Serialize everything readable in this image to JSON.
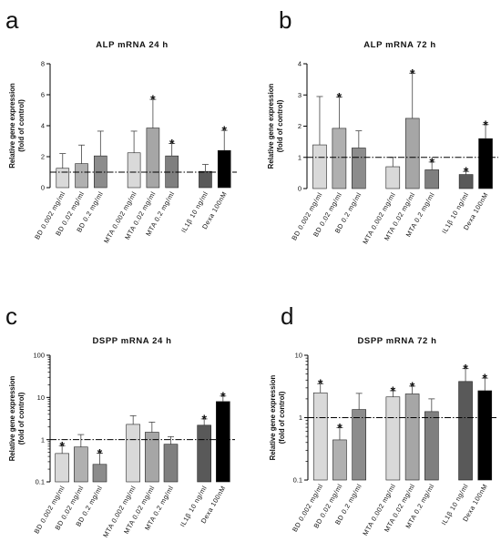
{
  "chart_data": [
    {
      "panel": "a",
      "type": "bar",
      "title": "ALP mRNA 24 h",
      "ylabel": [
        "Relative gene expression",
        "(fold of control)"
      ],
      "scale": "linear",
      "ylim": [
        0,
        8
      ],
      "yticks": [
        "0",
        "2",
        "4",
        "6",
        "8"
      ],
      "reference_line": 1,
      "categories": [
        "BD 0.002 mg/ml",
        "BD 0.02 mg/ml",
        "BD 0.2 mg/ml",
        "MTA 0.002 mg/ml",
        "MTA 0.02 mg/ml",
        "MTA 0.2 mg/ml",
        "IL1β 10 ng/ml",
        "Dexa 100nM"
      ],
      "values": [
        1.25,
        1.55,
        2.05,
        2.25,
        3.85,
        2.05,
        1.05,
        2.4
      ],
      "errors": [
        0.95,
        1.2,
        1.6,
        1.4,
        1.85,
        0.8,
        0.45,
        1.3
      ],
      "significant": [
        false,
        false,
        false,
        false,
        true,
        true,
        false,
        true
      ],
      "colors": [
        "#d9d9d9",
        "#b0b0b0",
        "#8c8c8c",
        "#d9d9d9",
        "#a6a6a6",
        "#7f7f7f",
        "#595959",
        "#000000"
      ]
    },
    {
      "panel": "b",
      "type": "bar",
      "title": "ALP mRNA 72 h",
      "ylabel": [
        "Relative gene expression",
        "(fold of control)"
      ],
      "scale": "linear",
      "ylim": [
        0,
        4
      ],
      "yticks": [
        "0",
        "1",
        "2",
        "3",
        "4"
      ],
      "reference_line": 1,
      "categories": [
        "BD 0.002 mg/ml",
        "BD 0.02 mg/ml",
        "BD 0.2 mg/ml",
        "MTA 0.002 mg/ml",
        "MTA 0.02 mg/ml",
        "MTA 0.2 mg/ml",
        "IL1β 10 ng/ml",
        "Dexa 100nM"
      ],
      "values": [
        1.4,
        1.93,
        1.3,
        0.7,
        2.25,
        0.6,
        0.45,
        1.6
      ],
      "errors": [
        1.55,
        1.0,
        0.55,
        0.3,
        1.45,
        0.25,
        0.1,
        0.45
      ],
      "significant": [
        false,
        true,
        false,
        false,
        true,
        true,
        true,
        true
      ],
      "colors": [
        "#d9d9d9",
        "#b0b0b0",
        "#8c8c8c",
        "#d9d9d9",
        "#a6a6a6",
        "#7f7f7f",
        "#595959",
        "#000000"
      ]
    },
    {
      "panel": "c",
      "type": "bar",
      "title": "DSPP mRNA 24 h",
      "ylabel": [
        "Relative gene expression",
        "(fold of control)"
      ],
      "scale": "log",
      "ylim": [
        0.1,
        100
      ],
      "yticks": [
        "0.1",
        "1",
        "10",
        "100"
      ],
      "reference_line": 1,
      "categories": [
        "BD 0.002 mg/ml",
        "BD 0.02 mg/ml",
        "BD 0.2 mg/ml",
        "MTA 0.002 mg/ml",
        "MTA 0.02 mg/ml",
        "MTA 0.2 mg/ml",
        "IL1β 10 ng/ml",
        "Dexa 100nM"
      ],
      "values": [
        0.47,
        0.67,
        0.26,
        2.3,
        1.5,
        0.78,
        2.2,
        8.0
      ],
      "errors": [
        0.25,
        0.65,
        0.22,
        1.4,
        1.1,
        0.4,
        0.9,
        2.8
      ],
      "significant": [
        true,
        false,
        true,
        false,
        false,
        false,
        true,
        true
      ],
      "colors": [
        "#d9d9d9",
        "#b0b0b0",
        "#8c8c8c",
        "#d9d9d9",
        "#a6a6a6",
        "#7f7f7f",
        "#595959",
        "#000000"
      ]
    },
    {
      "panel": "d",
      "type": "bar",
      "title": "DSPP mRNA 72 h",
      "ylabel": [
        "Relative gene expression",
        "(fold of control)"
      ],
      "scale": "log",
      "ylim": [
        0.1,
        10
      ],
      "yticks": [
        "0.1",
        "1",
        "10"
      ],
      "reference_line": 1,
      "categories": [
        "BD 0.002 mg/ml",
        "BD 0.02 mg/ml",
        "BD 0.2 mg/ml",
        "MTA 0.002 mg/ml",
        "MTA 0.02 mg/ml",
        "MTA 0.2 mg/ml",
        "IL1β 10 ng/ml",
        "Dexa 100nM"
      ],
      "values": [
        2.5,
        0.44,
        1.35,
        2.15,
        2.4,
        1.25,
        3.8,
        2.7
      ],
      "errors": [
        1.0,
        0.25,
        1.1,
        0.55,
        0.8,
        0.75,
        2.3,
        1.6
      ],
      "significant": [
        true,
        true,
        false,
        true,
        true,
        false,
        true,
        true
      ],
      "colors": [
        "#d9d9d9",
        "#b0b0b0",
        "#8c8c8c",
        "#d9d9d9",
        "#a6a6a6",
        "#7f7f7f",
        "#595959",
        "#000000"
      ]
    }
  ]
}
